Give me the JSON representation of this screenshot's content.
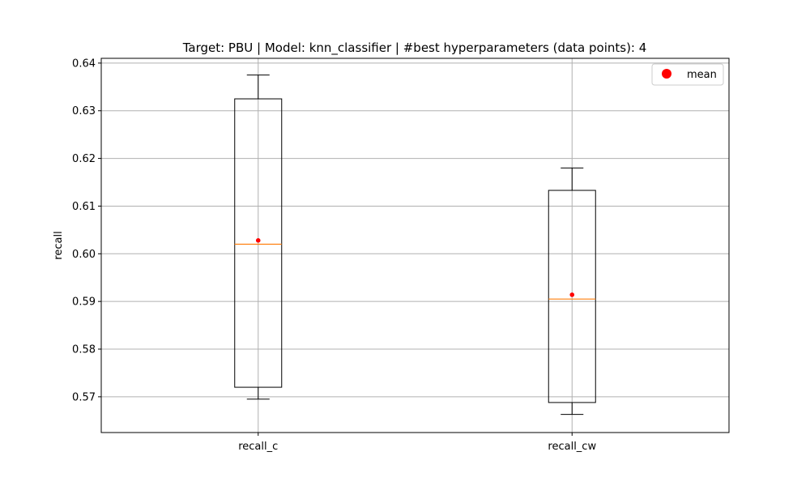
{
  "chart_data": {
    "type": "box",
    "title": "Target: PBU | Model: knn_classifier | #best hyperparameters (data points): 4",
    "xlabel": "",
    "ylabel": "recall",
    "categories": [
      "recall_c",
      "recall_cw"
    ],
    "ylim": [
      0.5625,
      0.641
    ],
    "yticks": [
      "0.57",
      "0.58",
      "0.59",
      "0.60",
      "0.61",
      "0.62",
      "0.63",
      "0.64"
    ],
    "grid": true,
    "legend": {
      "placement": "top-right",
      "entries": [
        {
          "label": "mean",
          "marker": "circle",
          "color": "#ff0000"
        }
      ]
    },
    "boxes": [
      {
        "category": "recall_c",
        "whisker_low": 0.5695,
        "q1": 0.572,
        "median": 0.602,
        "q3": 0.6325,
        "whisker_high": 0.6375,
        "mean": 0.6028
      },
      {
        "category": "recall_cw",
        "whisker_low": 0.5663,
        "q1": 0.5688,
        "median": 0.5905,
        "q3": 0.6133,
        "whisker_high": 0.618,
        "mean": 0.5914
      }
    ],
    "colors": {
      "box": "#000000",
      "median": "#ff7f0e",
      "mean": "#ff0000",
      "grid": "#b0b0b0"
    }
  }
}
